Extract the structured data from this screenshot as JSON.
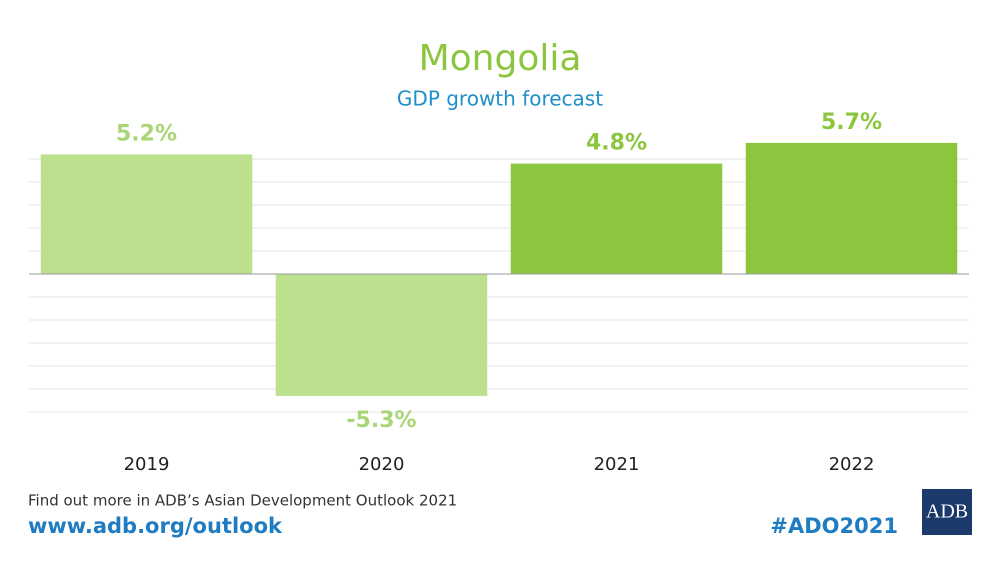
{
  "chart_data": {
    "type": "bar",
    "title": "Mongolia",
    "subtitle": "GDP growth forecast",
    "categories": [
      "2019",
      "2020",
      "2021",
      "2022"
    ],
    "values": [
      5.2,
      -5.3,
      4.8,
      5.7
    ],
    "value_labels": [
      "5.2%",
      "-5.3%",
      "4.8%",
      "5.7%"
    ],
    "colors": [
      "#bde08f",
      "#bde08f",
      "#8cc63f",
      "#8cc63f"
    ],
    "label_colors": [
      "#a9d574",
      "#a9d574",
      "#8cc63f",
      "#8cc63f"
    ],
    "ylim": [
      -6,
      6
    ],
    "grid": true
  },
  "footer": {
    "note": "Find out more in ADB’s Asian Development Outlook 2021",
    "url": "www.adb.org/outlook",
    "hashtag": "#ADO2021",
    "logo": "ADB"
  }
}
